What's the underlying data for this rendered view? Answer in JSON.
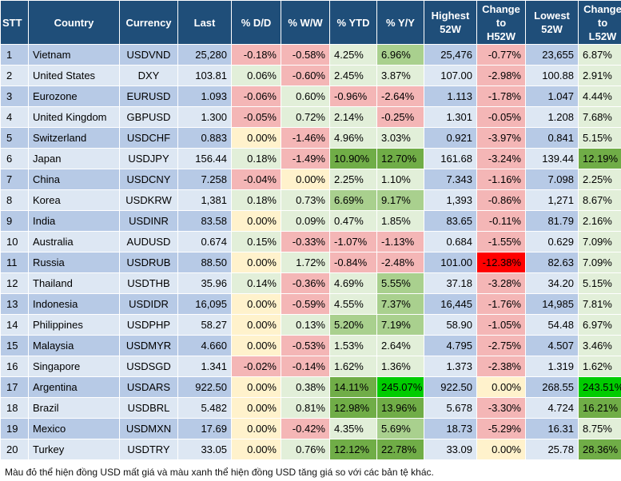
{
  "headers": [
    "STT",
    "Country",
    "Currency",
    "Last",
    "% D/D",
    "% W/W",
    "% YTD",
    "% Y/Y",
    "Highest\n52W",
    "Change\nto\nH52W",
    "Lowest\n52W",
    "Change\nto\nL52W"
  ],
  "rows": [
    [
      "1",
      "Vietnam",
      "USDVND",
      "25,280",
      "-0.18%",
      "-0.58%",
      "4.25%",
      "6.96%",
      "25,476",
      "-0.77%",
      "23,655",
      "6.87%"
    ],
    [
      "2",
      "United States",
      "DXY",
      "103.81",
      "0.06%",
      "-0.60%",
      "2.45%",
      "3.87%",
      "107.00",
      "-2.98%",
      "100.88",
      "2.91%"
    ],
    [
      "3",
      "Eurozone",
      "EURUSD",
      "1.093",
      "-0.06%",
      "0.60%",
      "-0.96%",
      "-2.64%",
      "1.113",
      "-1.78%",
      "1.047",
      "4.44%"
    ],
    [
      "4",
      "United Kingdom",
      "GBPUSD",
      "1.300",
      "-0.05%",
      "0.72%",
      "2.14%",
      "-0.25%",
      "1.301",
      "-0.05%",
      "1.208",
      "7.68%"
    ],
    [
      "5",
      "Switzerland",
      "USDCHF",
      "0.883",
      "0.00%",
      "-1.46%",
      "4.96%",
      "3.03%",
      "0.921",
      "-3.97%",
      "0.841",
      "5.15%"
    ],
    [
      "6",
      "Japan",
      "USDJPY",
      "156.44",
      "0.18%",
      "-1.49%",
      "10.90%",
      "12.70%",
      "161.68",
      "-3.24%",
      "139.44",
      "12.19%"
    ],
    [
      "7",
      "China",
      "USDCNY",
      "7.258",
      "-0.04%",
      "0.00%",
      "2.25%",
      "1.10%",
      "7.343",
      "-1.16%",
      "7.098",
      "2.25%"
    ],
    [
      "8",
      "Korea",
      "USDKRW",
      "1,381",
      "0.18%",
      "0.73%",
      "6.69%",
      "9.17%",
      "1,393",
      "-0.86%",
      "1,271",
      "8.67%"
    ],
    [
      "9",
      "India",
      "USDINR",
      "83.58",
      "0.00%",
      "0.09%",
      "0.47%",
      "1.85%",
      "83.65",
      "-0.11%",
      "81.79",
      "2.16%"
    ],
    [
      "10",
      "Australia",
      "AUDUSD",
      "0.674",
      "0.15%",
      "-0.33%",
      "-1.07%",
      "-1.13%",
      "0.684",
      "-1.55%",
      "0.629",
      "7.09%"
    ],
    [
      "11",
      "Russia",
      "USDRUB",
      "88.50",
      "0.00%",
      "1.72%",
      "-0.84%",
      "-2.48%",
      "101.00",
      "-12.38%",
      "82.63",
      "7.09%"
    ],
    [
      "12",
      "Thailand",
      "USDTHB",
      "35.96",
      "0.14%",
      "-0.36%",
      "4.69%",
      "5.55%",
      "37.18",
      "-3.28%",
      "34.20",
      "5.15%"
    ],
    [
      "13",
      "Indonesia",
      "USDIDR",
      "16,095",
      "0.00%",
      "-0.59%",
      "4.55%",
      "7.37%",
      "16,445",
      "-1.76%",
      "14,985",
      "7.81%"
    ],
    [
      "14",
      "Philippines",
      "USDPHP",
      "58.27",
      "0.00%",
      "0.13%",
      "5.20%",
      "7.19%",
      "58.90",
      "-1.05%",
      "54.48",
      "6.97%"
    ],
    [
      "15",
      "Malaysia",
      "USDMYR",
      "4.660",
      "0.00%",
      "-0.53%",
      "1.53%",
      "2.64%",
      "4.795",
      "-2.75%",
      "4.507",
      "3.46%"
    ],
    [
      "16",
      "Singapore",
      "USDSGD",
      "1.341",
      "-0.02%",
      "-0.14%",
      "1.62%",
      "1.36%",
      "1.373",
      "-2.38%",
      "1.319",
      "1.62%"
    ],
    [
      "17",
      "Argentina",
      "USDARS",
      "922.50",
      "0.00%",
      "0.38%",
      "14.11%",
      "245.07%",
      "922.50",
      "0.00%",
      "268.55",
      "243.51%"
    ],
    [
      "18",
      "Brazil",
      "USDBRL",
      "5.482",
      "0.00%",
      "0.81%",
      "12.98%",
      "13.96%",
      "5.678",
      "-3.30%",
      "4.724",
      "16.21%"
    ],
    [
      "19",
      "Mexico",
      "USDMXN",
      "17.69",
      "0.00%",
      "-0.42%",
      "4.35%",
      "5.69%",
      "18.73",
      "-5.29%",
      "16.31",
      "8.75%"
    ],
    [
      "20",
      "Turkey",
      "USDTRY",
      "33.05",
      "0.00%",
      "0.76%",
      "12.12%",
      "22.78%",
      "33.09",
      "0.00%",
      "25.78",
      "28.36%"
    ]
  ],
  "footnote": "Màu đỏ thể hiện đồng USD mất giá và màu xanh thể hiện đồng USD tăng giá so với các bản tệ khác.",
  "colors": {
    "header_bg": "#1f4e79",
    "row_blue_even": "#dde7f3",
    "row_blue_odd": "#b7cae6",
    "zero_yellow": "#fff2cc",
    "red_light": "#f4b6b6",
    "red_strong": "#ff0000",
    "green_light": "#e2efd9",
    "green_mid": "#a9d08e",
    "green_strong": "#70ad47",
    "green_bright": "#00cc00"
  }
}
